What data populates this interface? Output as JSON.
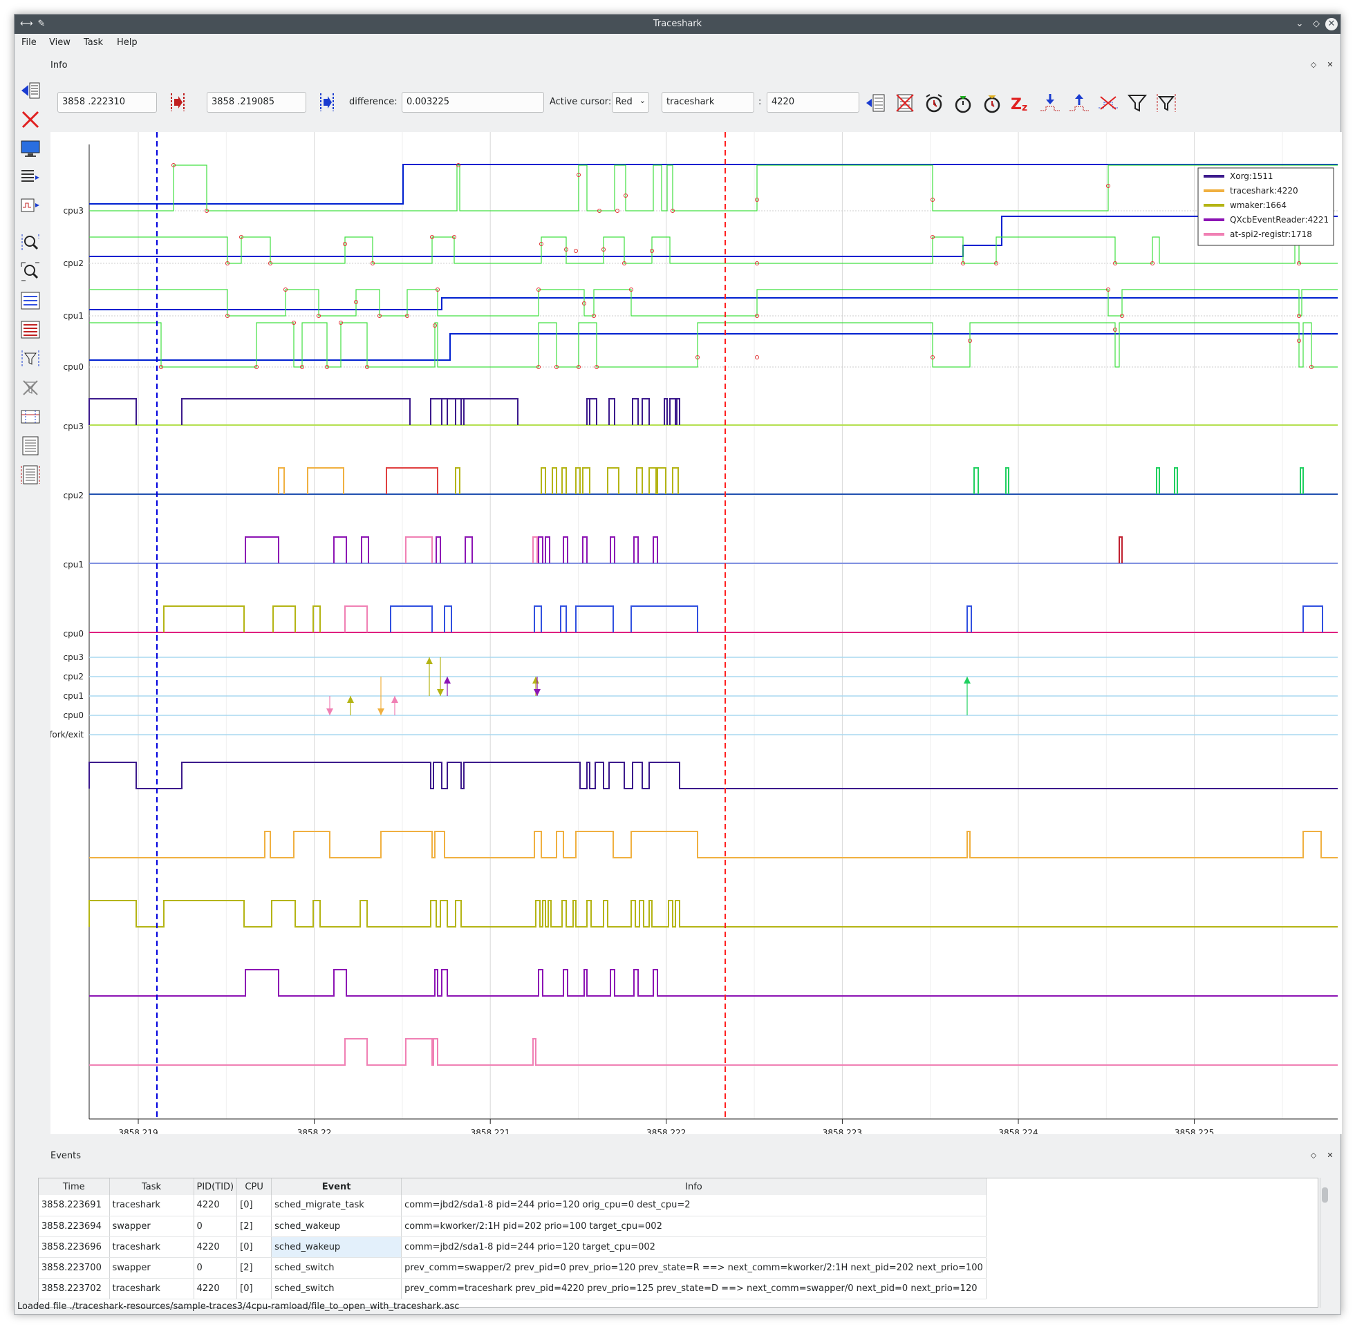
{
  "window": {
    "title": "Traceshark"
  },
  "menu": [
    "File",
    "View",
    "Task",
    "Help"
  ],
  "info": {
    "dock_title": "Info",
    "cursor1": "3858   .222310",
    "cursor2": "3858   .219085",
    "difference_label": "difference:",
    "difference_value": "0.003225",
    "active_cursor_label": "Active cursor:",
    "active_cursor_value": "Red",
    "task_name": "traceshark",
    "task_sep": ":",
    "task_pid": "4220"
  },
  "plot": {
    "y_labels_top": [
      "cpu3",
      "cpu2",
      "cpu1",
      "cpu0"
    ],
    "y_labels_sched": [
      "cpu3",
      "cpu2",
      "cpu1",
      "cpu0"
    ],
    "y_labels_wake": [
      "cpu3",
      "cpu2",
      "cpu1",
      "cpu0",
      "fork/exit"
    ],
    "x_ticks": [
      "3858.219",
      "3858.22",
      "3858.221",
      "3858.222",
      "3858.223",
      "3858.224",
      "3858.225"
    ],
    "legend": [
      {
        "name": "Xorg:1511",
        "color": "#3c1a8c"
      },
      {
        "name": "traceshark:4220",
        "color": "#f0b040"
      },
      {
        "name": "wmaker:1664",
        "color": "#b4b414"
      },
      {
        "name": "QXcbEventReader:4221",
        "color": "#8c14b4"
      },
      {
        "name": "at-spi2-registr:1718",
        "color": "#f080b4"
      }
    ],
    "colors": {
      "blue_cursor": "#0000dd",
      "red_cursor": "#ff2020",
      "freq": "#0020d0",
      "idle": "#40e040"
    }
  },
  "events": {
    "dock_title": "Events",
    "columns": [
      "Time",
      "Task",
      "PID(TID)",
      "CPU",
      "Event",
      "Info"
    ],
    "rows": [
      [
        "3858.223691",
        "traceshark",
        "4220",
        "[0]",
        "sched_migrate_task",
        "comm=jbd2/sda1-8 pid=244 prio=120 orig_cpu=0 dest_cpu=2"
      ],
      [
        "3858.223694",
        "swapper",
        "0",
        "[2]",
        "sched_wakeup",
        "comm=kworker/2:1H pid=202 prio=100 target_cpu=002"
      ],
      [
        "3858.223696",
        "traceshark",
        "4220",
        "[0]",
        "sched_wakeup",
        "comm=jbd2/sda1-8 pid=244 prio=120 target_cpu=002"
      ],
      [
        "3858.223700",
        "swapper",
        "0",
        "[2]",
        "sched_switch",
        "prev_comm=swapper/2 prev_pid=0 prev_prio=120 prev_state=R ==> next_comm=kworker/2:1H next_pid=202 next_prio=100"
      ],
      [
        "3858.223702",
        "traceshark",
        "4220",
        "[0]",
        "sched_switch",
        "prev_comm=traceshark prev_pid=4220 prev_prio=125 prev_state=D ==> next_comm=swapper/0 next_pid=0 next_prio=120"
      ]
    ]
  },
  "status": "Loaded file ./traceshark-resources/sample-traces3/4cpu-ramload/file_to_open_with_traceshark.asc"
}
